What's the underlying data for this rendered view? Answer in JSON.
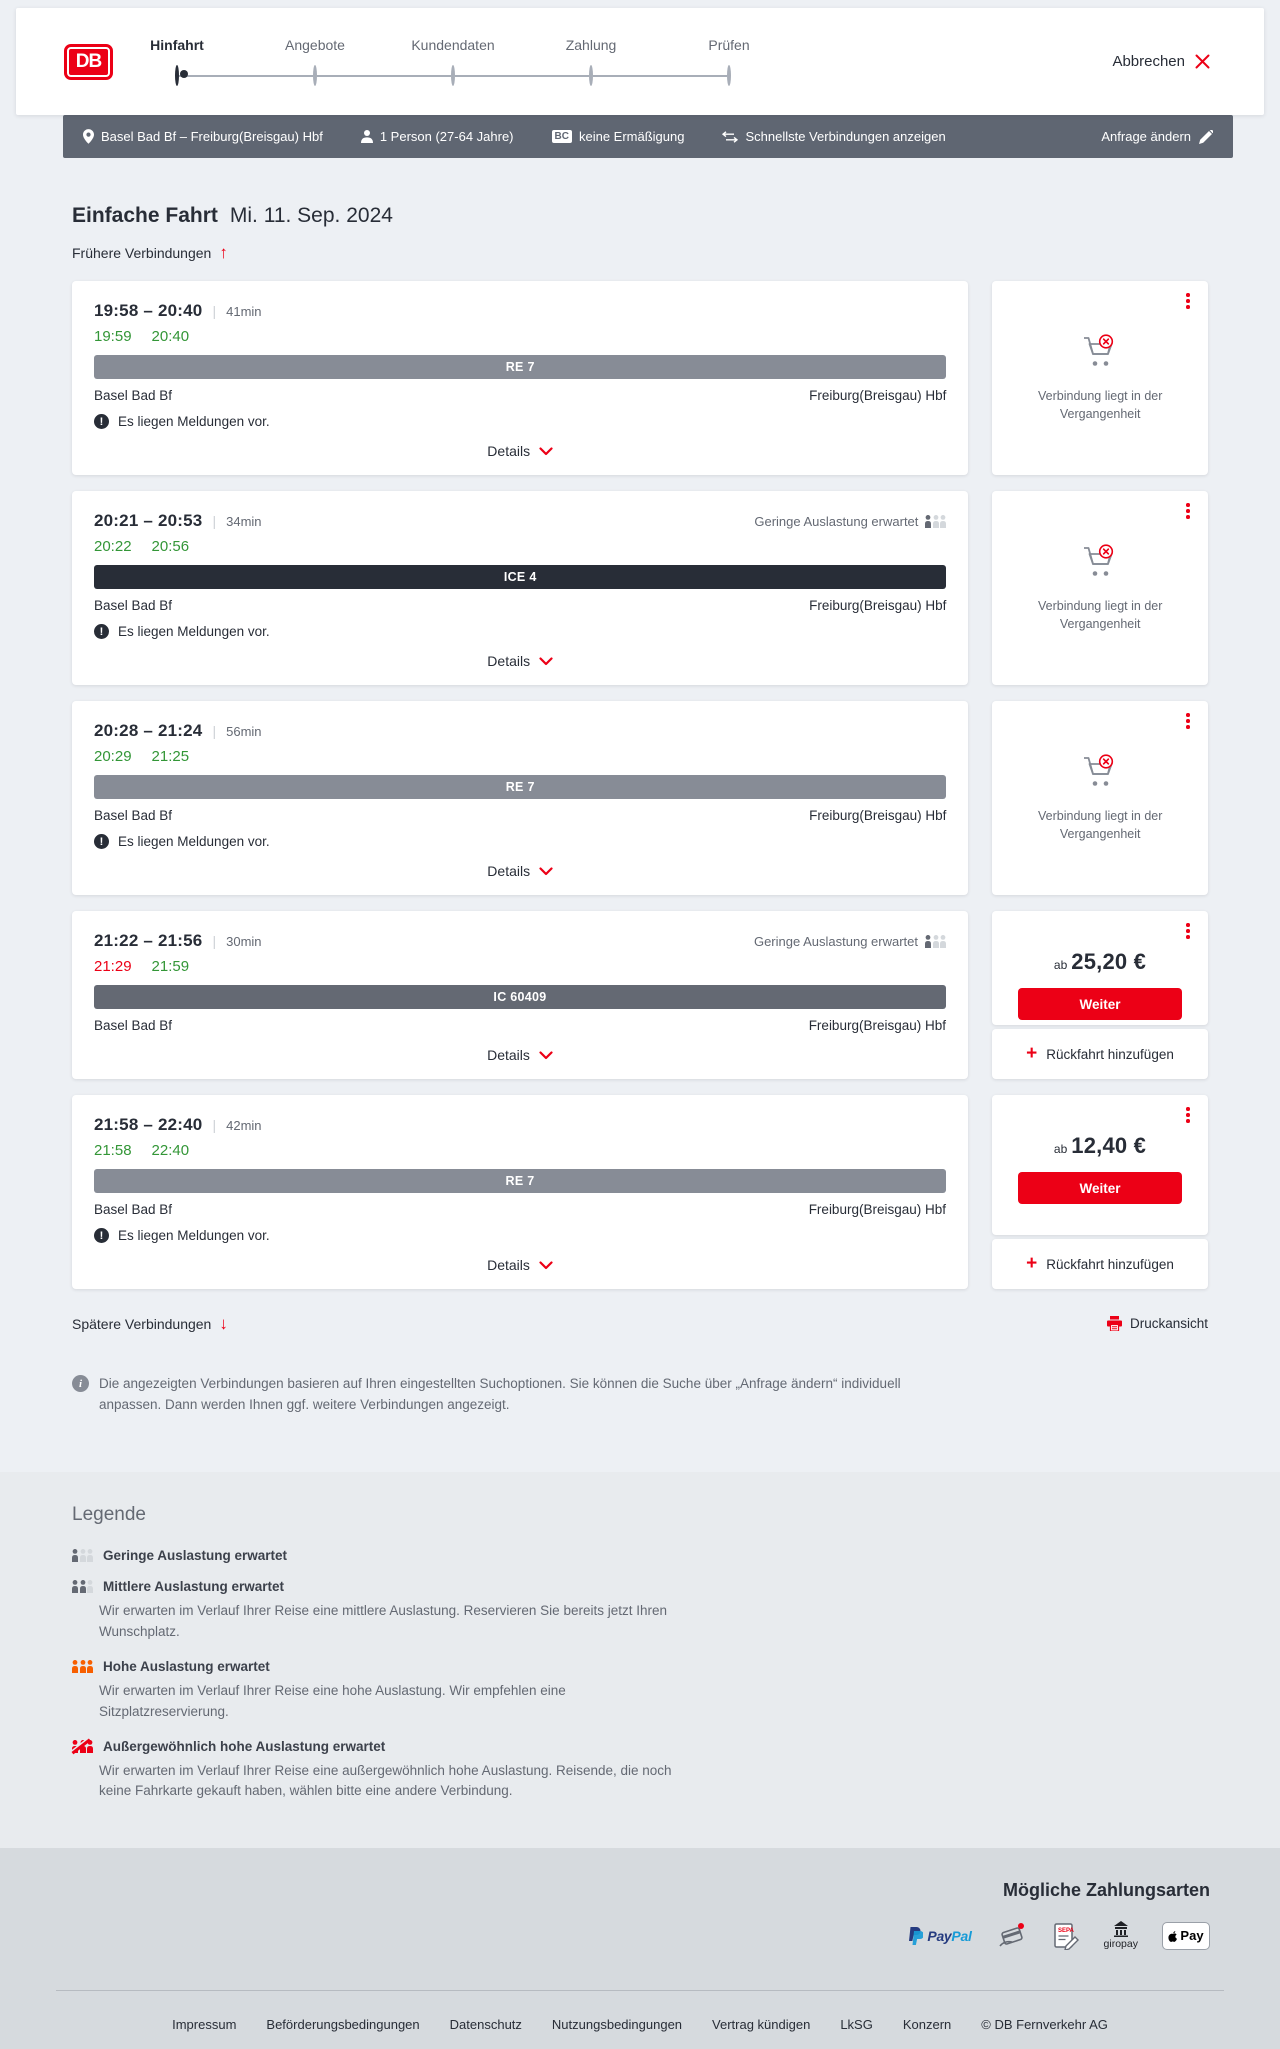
{
  "colors": {
    "brand_red": "#ec0016",
    "dark": "#282d37",
    "gray": "#646973",
    "green_ontime": "#339637",
    "bar_re": "#878c96",
    "bar_ic": "#646973",
    "bar_ice": "#282d37",
    "summary_bg": "#5f6672"
  },
  "header": {
    "logo": "DB",
    "cancel_label": "Abbrechen",
    "steps": [
      {
        "label": "Hinfahrt",
        "active": true
      },
      {
        "label": "Angebote",
        "active": false
      },
      {
        "label": "Kundendaten",
        "active": false
      },
      {
        "label": "Zahlung",
        "active": false
      },
      {
        "label": "Prüfen",
        "active": false
      }
    ]
  },
  "summary_bar": {
    "route": "Basel Bad Bf – Freiburg(Breisgau) Hbf",
    "traveler": "1 Person (27-64 Jahre)",
    "bahncard_badge": "BC",
    "discount": "keine Ermäßigung",
    "fastest": "Schnellste Verbindungen anzeigen",
    "change_request": "Anfrage ändern"
  },
  "results": {
    "title": "Einfache Fahrt",
    "date": "Mi. 11. Sep. 2024",
    "earlier_label": "Frühere Verbindungen",
    "later_label": "Spätere Verbindungen",
    "print_label": "Druckansicht",
    "details_label": "Details",
    "messages_label": "Es liegen Meldungen vor.",
    "past_label": "Verbindung liegt in der Vergangenheit",
    "ab_label": "ab",
    "weiter_label": "Weiter",
    "return_label": "Rückfahrt hinzufügen",
    "notice": "Die angezeigten Verbindungen basieren auf Ihren eingestellten Suchoptionen. Sie können die Suche über „Anfrage ändern“ individuell anpassen. Dann werden Ihnen ggf. weitere Verbindungen angezeigt.",
    "connections": [
      {
        "times": "19:58 – 20:40",
        "duration": "41min",
        "rt_dep": "19:59",
        "rt_dep_delayed": false,
        "rt_arr": "20:40",
        "rt_arr_delayed": false,
        "train": "RE 7",
        "train_class": "re",
        "from": "Basel Bad Bf",
        "to": "Freiburg(Breisgau) Hbf",
        "has_messages": true,
        "occupancy": "",
        "status": "past",
        "price": ""
      },
      {
        "times": "20:21 – 20:53",
        "duration": "34min",
        "rt_dep": "20:22",
        "rt_dep_delayed": false,
        "rt_arr": "20:56",
        "rt_arr_delayed": false,
        "train": "ICE 4",
        "train_class": "ice",
        "from": "Basel Bad Bf",
        "to": "Freiburg(Breisgau) Hbf",
        "has_messages": true,
        "occupancy": "Geringe Auslastung erwartet",
        "status": "past",
        "price": ""
      },
      {
        "times": "20:28 – 21:24",
        "duration": "56min",
        "rt_dep": "20:29",
        "rt_dep_delayed": false,
        "rt_arr": "21:25",
        "rt_arr_delayed": false,
        "train": "RE 7",
        "train_class": "re",
        "from": "Basel Bad Bf",
        "to": "Freiburg(Breisgau) Hbf",
        "has_messages": true,
        "occupancy": "",
        "status": "past",
        "price": ""
      },
      {
        "times": "21:22 – 21:56",
        "duration": "30min",
        "rt_dep": "21:29",
        "rt_dep_delayed": true,
        "rt_arr": "21:59",
        "rt_arr_delayed": false,
        "train": "IC 60409",
        "train_class": "ic",
        "from": "Basel Bad Bf",
        "to": "Freiburg(Breisgau) Hbf",
        "has_messages": false,
        "occupancy": "Geringe Auslastung erwartet",
        "status": "bookable",
        "price": "25,20 €"
      },
      {
        "times": "21:58 – 22:40",
        "duration": "42min",
        "rt_dep": "21:58",
        "rt_dep_delayed": false,
        "rt_arr": "22:40",
        "rt_arr_delayed": false,
        "train": "RE 7",
        "train_class": "re",
        "from": "Basel Bad Bf",
        "to": "Freiburg(Breisgau) Hbf",
        "has_messages": true,
        "occupancy": "",
        "status": "bookable",
        "price": "12,40 €"
      }
    ]
  },
  "legend": {
    "title": "Legende",
    "items": [
      {
        "level": "low",
        "label": "Geringe Auslastung erwartet",
        "desc": ""
      },
      {
        "level": "medium",
        "label": "Mittlere Auslastung erwartet",
        "desc": "Wir erwarten im Verlauf Ihrer Reise eine mittlere Auslastung. Reservieren Sie bereits jetzt Ihren Wunschplatz."
      },
      {
        "level": "high",
        "label": "Hohe Auslastung erwartet",
        "desc": "Wir erwarten im Verlauf Ihrer Reise eine hohe Auslastung. Wir empfehlen eine Sitzplatzreservierung."
      },
      {
        "level": "very-high",
        "label": "Außergewöhnlich hohe Auslastung erwartet",
        "desc": "Wir erwarten im Verlauf Ihrer Reise eine außergewöhnlich hohe Auslastung. Reisende, die noch keine Fahrkarte gekauft haben, wählen bitte eine andere Verbindung."
      }
    ]
  },
  "payment": {
    "title": "Mögliche Zahlungsarten",
    "methods": [
      {
        "id": "paypal",
        "label": "PayPal"
      },
      {
        "id": "creditcard",
        "label": "Kreditkarte"
      },
      {
        "id": "sepa",
        "label": "SEPA-Lastschrift"
      },
      {
        "id": "giropay",
        "label": "giropay"
      },
      {
        "id": "applepay",
        "label": "Apple Pay"
      }
    ]
  },
  "footer": {
    "links": [
      "Impressum",
      "Beförderungsbedingungen",
      "Datenschutz",
      "Nutzungsbedingungen",
      "Vertrag kündigen",
      "LkSG",
      "Konzern"
    ],
    "copyright": "© DB Fernverkehr AG"
  }
}
